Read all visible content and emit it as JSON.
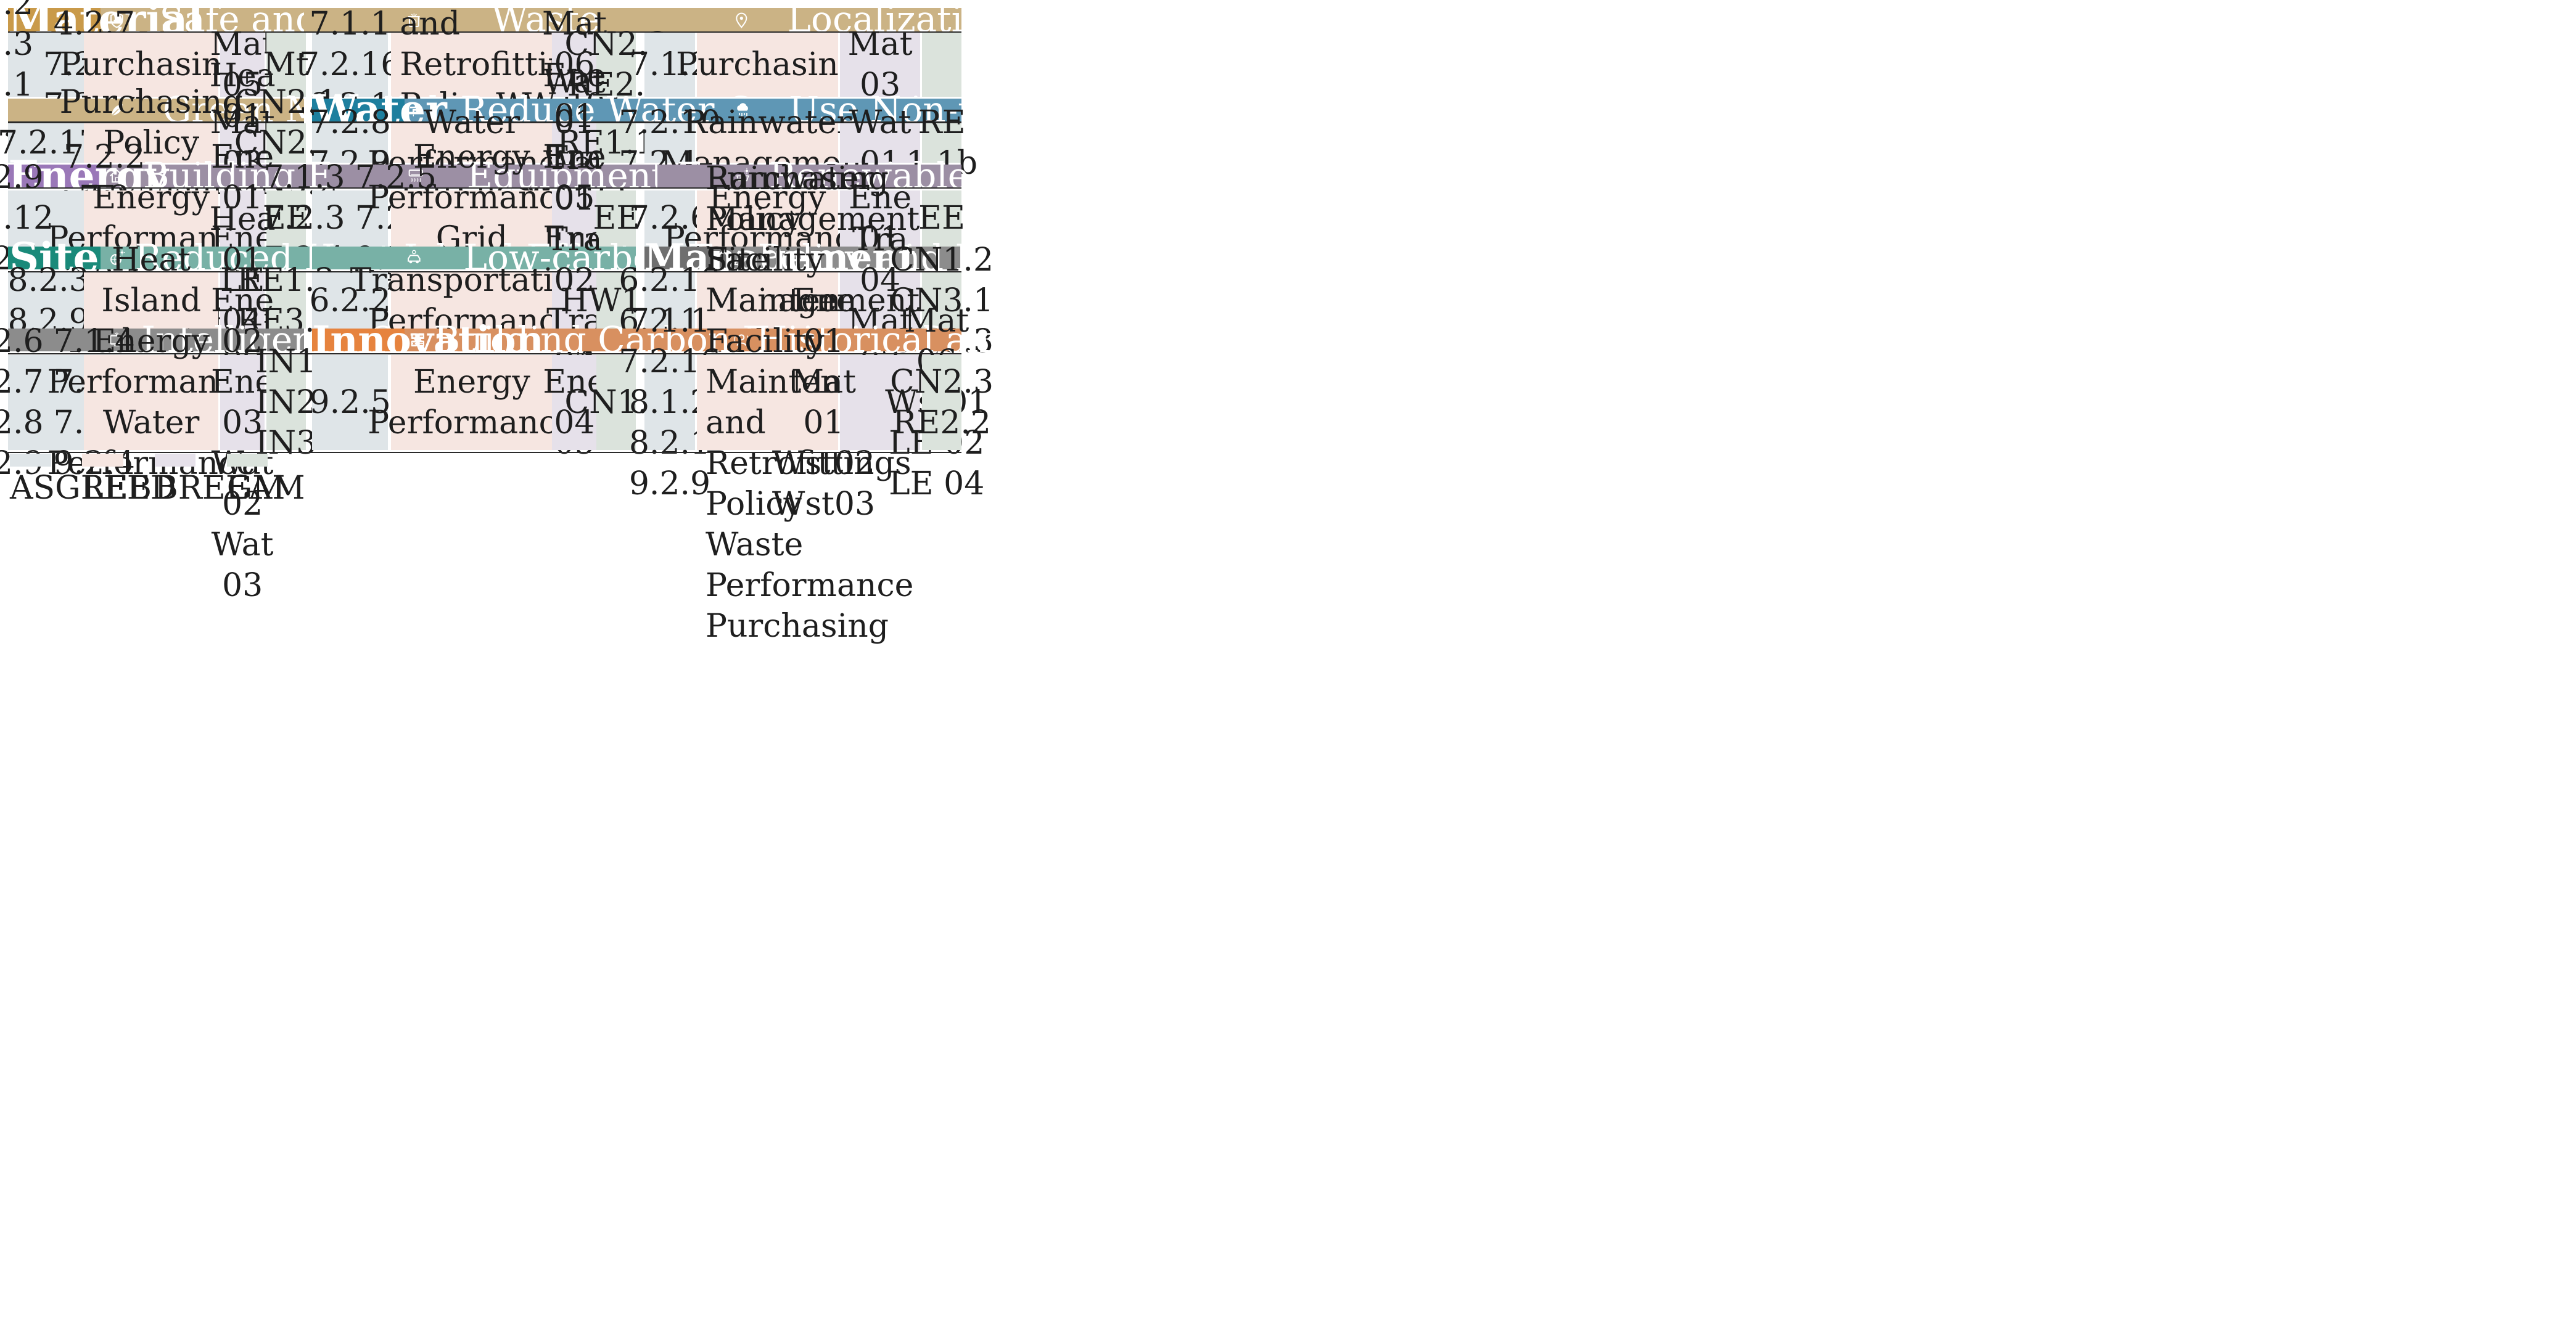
{
  "colors": {
    "material": "#c99a4a",
    "material_band": "#cbb385",
    "water": "#1e7f9e",
    "water_band": "#5f97b5",
    "energy": "#9a78b8",
    "energy_band": "#9c8fa4",
    "site": "#1a8a7a",
    "site_band": "#78b1a6",
    "management": "#6f6f6f",
    "management_band": "#8c8c8c",
    "innovation": "#e6833e",
    "innovation_band": "#d89060",
    "asgreb": "#dfe5e8",
    "leed": "#f6e6e1",
    "breeam": "#e6e1ea",
    "gm": "#dbe3dc"
  },
  "categories": {
    "material": "Material",
    "water": "Water",
    "energy": "Energy",
    "site": "Site",
    "management": "Management",
    "innovation": "Innovation"
  },
  "sections": {
    "safe": {
      "title": "Safe and Durable",
      "icon": "shield-check-icon",
      "asgreb_a": [
        "4.1.2",
        "4.1.3",
        "4.2.1",
        "4.2.2"
      ],
      "asgreb_b": [
        "4.2.7",
        "7.2.12",
        "7.2.14"
      ],
      "leed": [
        "Purchasing"
      ],
      "breeam": [
        "Mat 05"
      ],
      "gm": [
        "Mt"
      ]
    },
    "waste": {
      "title": "Waste Recycling",
      "icon": "recycling-bin-icon",
      "asgreb": [
        "7.1.1",
        "7.2.16",
        "8.2.1"
      ],
      "leed": [
        "Facility Maintenance and",
        "Retrofitting PolicyWaste",
        "Performance",
        "Purchasing"
      ],
      "breeam": [
        "Mat 01",
        "Mat 06",
        "Wst01",
        "Wst02",
        "Wst03"
      ],
      "gm": [
        "CN2.3",
        "RE2.2"
      ]
    },
    "local": {
      "title": "Localization of Materials",
      "icon": "location-pin-icon",
      "asgreb": [
        "7.1.2"
      ],
      "leed": [
        "Purchasing"
      ],
      "breeam": [
        "Mat 03"
      ],
      "gm": []
    },
    "green": {
      "title": "Green Materials",
      "icon": "leaf-icon",
      "asgreb": [
        "7.2.17"
      ],
      "leed": [
        "Purchasing Policy",
        "Purchasing"
      ],
      "breeam": [
        "Mat 03"
      ],
      "gm": [
        "CN2.1",
        "CN2.2",
        "CN3.2"
      ]
    },
    "reduce_water": {
      "title": "Reduce Water Consumption",
      "icon": "faucet-icon",
      "asgreb": [
        "7.2.8",
        "7.2.9"
      ],
      "leed": [
        "Water Performance"
      ],
      "breeam": [
        "Wat 01",
        "Wat 04"
      ],
      "gm": [
        "RE1.1b"
      ]
    },
    "nontrad_water": {
      "title": "Use Non-traditional Water",
      "icon": "rain-cloud-icon",
      "asgreb": [
        "7.2.10",
        "7.2.11"
      ],
      "leed": [
        "Rainwater Management"
      ],
      "breeam": [
        "Wat 01"
      ],
      "gm": [
        "RE 1.1b"
      ]
    },
    "bldg_energy": {
      "title": "Building Energy Saving",
      "icon": "house-icon",
      "asgreb_a": [
        "5.2.9",
        "5.2.12",
        "7.2.1"
      ],
      "asgreb_b": [
        "7.2.2",
        "7.2 .7",
        "9.2.1"
      ],
      "leed": [
        "Energy  Performance"
      ],
      "breeam": [
        "Hea 01",
        "Ene 01",
        "Ene 04",
        "Ene 09"
      ],
      "gm": [
        "EE"
      ]
    },
    "equip_energy": {
      "title": "Equipment Energy Saving",
      "icon": "air-conditioner-icon",
      "asgreb_a": [
        "7.1.3",
        "7.2.3",
        "7.2.4"
      ],
      "asgreb_b": [
        "7.2.5",
        "7.2.7",
        "9.2.1"
      ],
      "leed": [
        "Energy Performance",
        "Grid Harmonization"
      ],
      "breeam": [
        "Ene 01",
        "Ene 05",
        "Ene 06",
        "Ene 08"
      ],
      "gm": [
        "EE"
      ]
    },
    "renewable": {
      "title": "Renewable Energy Utilization",
      "icon": "solar-panel-icon",
      "asgreb": [
        "7.2.6"
      ],
      "leed": [
        "Energy  Performance"
      ],
      "breeam": [
        "Ene 01"
      ],
      "gm": [
        "EE"
      ]
    },
    "heat_island": {
      "title": "Reduced Heat Island Effect",
      "icon": "globe-sun-icon",
      "asgreb": [
        "8.2.3",
        "8.2.9"
      ],
      "leed": [
        "Heat Island Reduction"
      ],
      "breeam": [
        "LE 04"
      ],
      "gm": [
        "RE1.2",
        "RE3.1"
      ]
    },
    "transport": {
      "title": "Low-carbon Transportation",
      "icon": "electric-car-icon",
      "asgreb": [
        "6.2.2"
      ],
      "leed": [
        "Transportation",
        "Performance"
      ],
      "breeam": [
        "Tra 01",
        "Tra 02",
        "Tra 04",
        "Tra 05"
      ],
      "gm": [
        "HW1.1"
      ]
    },
    "policy": {
      "title": "Policy and Institutional Guidance",
      "icon": "gavel-icon",
      "asgreb": [
        "6.2.10",
        "6.2.13"
      ],
      "leed": [
        "Purchasing Policy",
        "Facility Maintenance",
        "and Retrofittings Policy"
      ],
      "breeam": [
        "Tra 04",
        "Mat 03"
      ],
      "gm": [
        "CN1.2",
        "CN3.1",
        "CN3.3"
      ]
    },
    "intelligence": {
      "title": "Intelligence Operational",
      "icon": "smart-tv-icon",
      "asgreb_a": [
        "6.2.6",
        "6.2.7",
        "6.2.8",
        "6.2.9"
      ],
      "asgreb_b": [
        "7.1.4",
        "7.1.5",
        "7.1.6",
        "9.2.4"
      ],
      "leed": [
        "Energy Performance",
        "Water Performance"
      ],
      "breeam": [
        "Hea 01",
        "Ene 02",
        "Ene 03",
        "Wat 02",
        "Wat 03"
      ],
      "gm": [
        "IN1",
        "IN2",
        "IN3"
      ]
    },
    "carbon": {
      "title": "Building Carbon Emission Calculation",
      "icon": "calculator-icon",
      "asgreb": [
        "9.2.5"
      ],
      "leed": [
        "Energy  Performance"
      ],
      "breeam": [
        "Ene 04"
      ],
      "gm": [
        "CN1.1"
      ]
    },
    "heritage": {
      "title": "Historical and Cultural Inheritance",
      "icon": "heritage-person-icon",
      "asgreb": [
        "7.1.1",
        "7.2.16",
        "8.1.2",
        "8.2.1",
        "9.2.9"
      ],
      "leed": [
        "Rainwater Management",
        "Site Management",
        "Facility Maintenance",
        "and Retrofittings Policy",
        "Waste Performance",
        "Purchasing"
      ],
      "breeam_a": [
        "Ene 01",
        "Mat 01",
        "Wst02",
        "Wst03"
      ],
      "breeam_b": [
        "Mat 06",
        "Wst01",
        "LE 02",
        "LE 04"
      ],
      "gm": [
        "CN2.3",
        "RE2.2"
      ]
    }
  },
  "legend": [
    {
      "label": "ASGREB",
      "color": "#dfe5e8"
    },
    {
      "label": "LEED",
      "color": "#f6e6e1"
    },
    {
      "label": "BREEAM",
      "color": "#e6e1ea"
    },
    {
      "label": "GM",
      "color": "#dbe3dc"
    }
  ]
}
